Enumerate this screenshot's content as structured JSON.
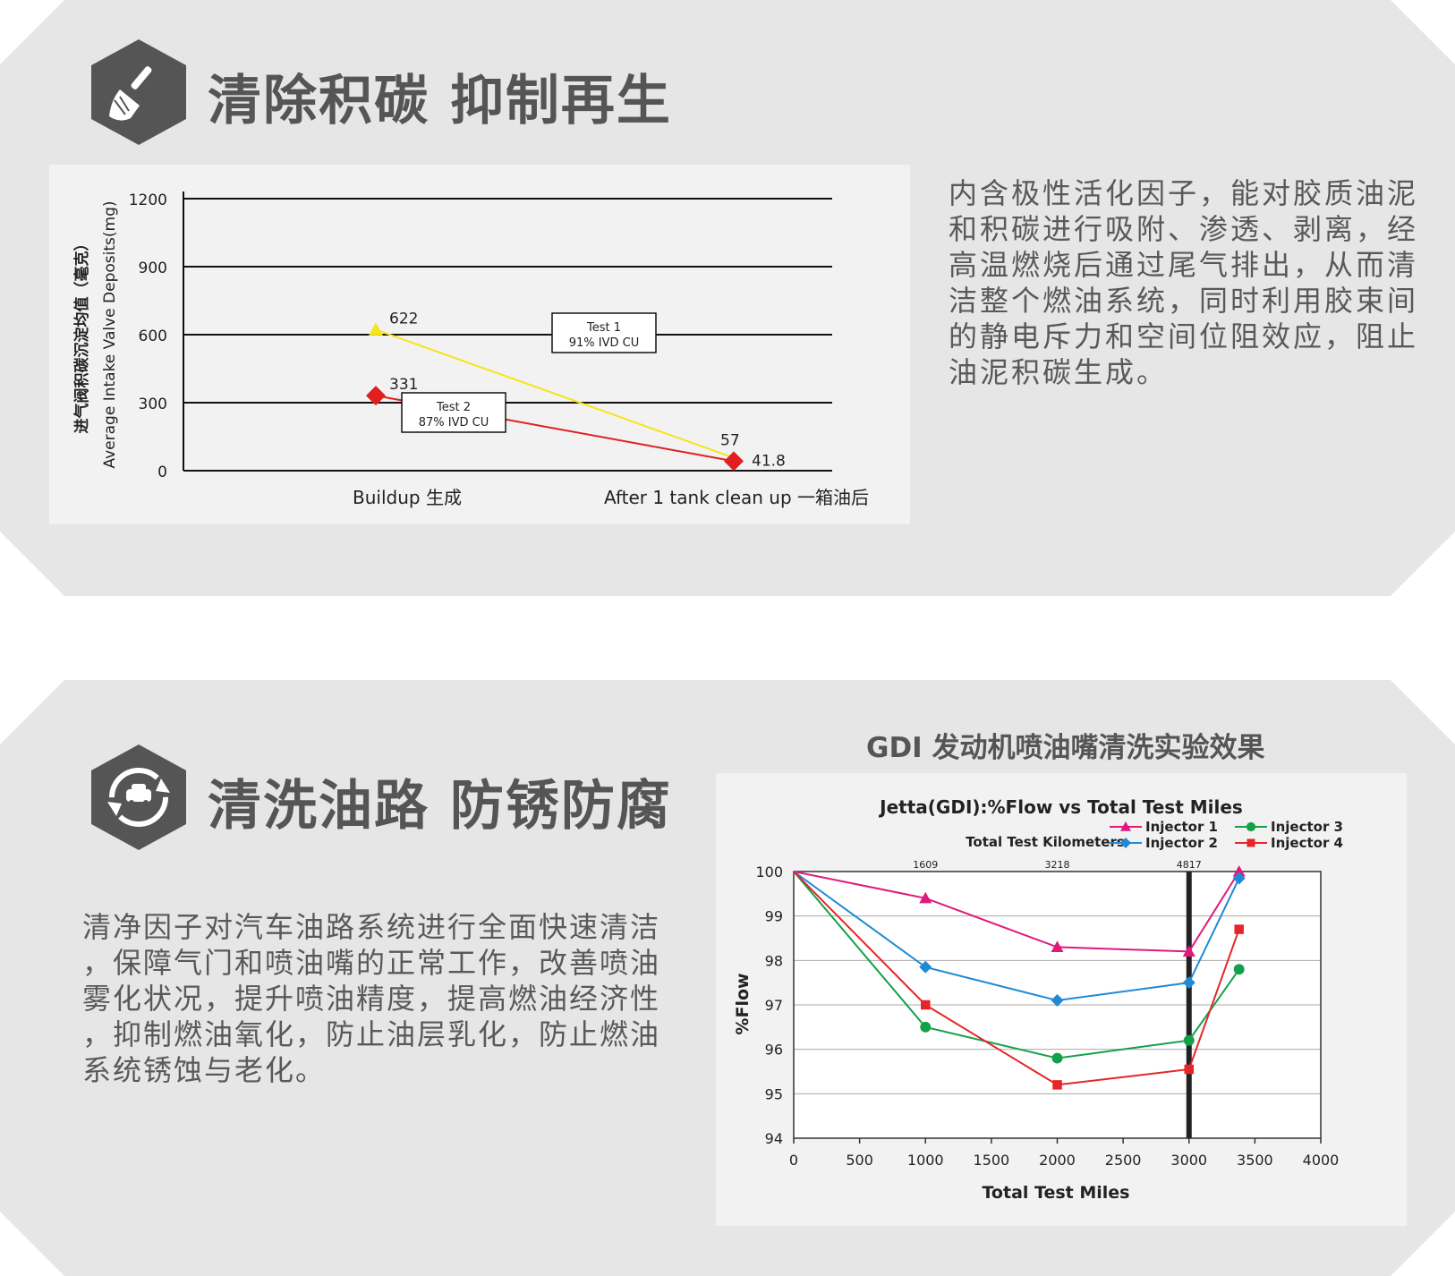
{
  "section1": {
    "heading": "清除积碳 抑制再生",
    "icon": "broom-icon",
    "paragraph_lines": [
      "内含极性活化因子，能对胶质油泥",
      "和积碳进行吸附、渗透、剥离，经",
      "高温燃烧后通过尾气排出，从而清",
      "洁整个燃油系统，同时利用胶束间",
      "的静电斥力和空间位阻效应，阻止",
      "油泥积碳生成。"
    ]
  },
  "section2": {
    "heading": "清洗油路 防锈防腐",
    "icon": "recycle-car-icon",
    "paragraph_lines": [
      "清净因子对汽车油路系统进行全面快速清洁",
      "，保障气门和喷油嘴的正常工作，改善喷油",
      "雾化状况，提升喷油精度，提高燃油经济性",
      "，抑制燃油氧化，防止油层乳化，防止燃油",
      "系统锈蚀与老化。"
    ],
    "chart_heading": "GDI 发动机喷油嘴清洗实验效果"
  },
  "chart_data": [
    {
      "type": "line",
      "ylabel_cn": "进气阀积碳沉淀均值（毫克）",
      "ylabel": "Average Intake Valve Deposits(mg)",
      "categories": [
        "Buildup 生成",
        "After 1 tank clean up 一箱油后"
      ],
      "ylim": [
        0,
        1200
      ],
      "yticks": [
        "0",
        "300",
        "600",
        "900",
        "1200"
      ],
      "grid": true,
      "series": [
        {
          "name": "Test 1",
          "values": [
            622,
            57
          ],
          "labels": [
            "622",
            "57"
          ],
          "color": "#f5e51b",
          "marker": "triangle",
          "box": [
            "Test 1",
            "91% IVD CU"
          ]
        },
        {
          "name": "Test 2",
          "values": [
            331,
            41.8
          ],
          "labels": [
            "331",
            "41.8"
          ],
          "color": "#e02020",
          "marker": "diamond",
          "box": [
            "Test 2",
            "87% IVD CU"
          ]
        }
      ]
    },
    {
      "type": "line",
      "title": "Jetta(GDI):%Flow vs Total Test Miles",
      "xlabel": "Total Test Miles",
      "ylabel": "%Flow",
      "secondary_xlabel": "Total Test Kilometers",
      "secondary_xticks": [
        "1609",
        "3218",
        "4817"
      ],
      "xlim": [
        0,
        4000
      ],
      "ylim": [
        94,
        100
      ],
      "xticks": [
        "0",
        "500",
        "1000",
        "1500",
        "2000",
        "2500",
        "3000",
        "3500",
        "4000"
      ],
      "yticks": [
        "94",
        "95",
        "96",
        "97",
        "98",
        "99",
        "100"
      ],
      "grid": true,
      "vertical_marker_x": 3000,
      "legend_position": "top-right",
      "series": [
        {
          "name": "Injector 1",
          "color": "#e0197d",
          "marker": "triangle",
          "x": [
            0,
            1000,
            2000,
            3000,
            3380
          ],
          "y": [
            100,
            99.4,
            98.3,
            98.2,
            100
          ]
        },
        {
          "name": "Injector 2",
          "color": "#1f8ad6",
          "marker": "diamond",
          "x": [
            0,
            1000,
            2000,
            3000,
            3380
          ],
          "y": [
            100,
            97.85,
            97.1,
            97.5,
            99.85
          ]
        },
        {
          "name": "Injector 3",
          "color": "#14a04a",
          "marker": "circle",
          "x": [
            0,
            1000,
            2000,
            3000,
            3380
          ],
          "y": [
            100,
            96.5,
            95.8,
            96.2,
            97.8
          ]
        },
        {
          "name": "Injector 4",
          "color": "#e52528",
          "marker": "square",
          "x": [
            0,
            1000,
            2000,
            3000,
            3380
          ],
          "y": [
            100,
            97.0,
            95.2,
            95.55,
            98.7
          ]
        }
      ]
    }
  ]
}
